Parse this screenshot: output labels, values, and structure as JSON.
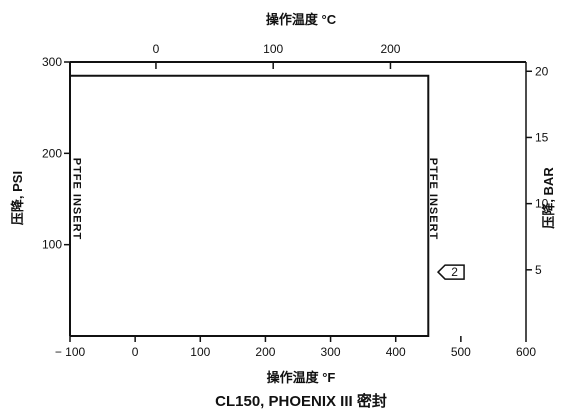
{
  "chart_data": {
    "type": "line",
    "title": "CL150, PHOENIX III 密封",
    "xlabel": "操作温度 °F",
    "x2label": "操作温度 °C",
    "ylabel": "压降, PSI",
    "y2label": "压降, BAR",
    "xlim": [
      -100,
      600
    ],
    "ylim": [
      0,
      300
    ],
    "x2lim": [
      -73.3,
      315.6
    ],
    "y2lim": [
      0,
      20.7
    ],
    "xticks": [
      "-100",
      "0",
      "100",
      "200",
      "300",
      "400",
      "500",
      "600"
    ],
    "yticks": [
      "100",
      "200",
      "300"
    ],
    "x2ticks": [
      "0",
      "100",
      "200"
    ],
    "y2ticks": [
      "5",
      "10",
      "15",
      "20"
    ],
    "grid": false,
    "series": [
      {
        "name": "PTFE INSERT",
        "x": [
          -100,
          450,
          450,
          -100
        ],
        "y": [
          285,
          285,
          0,
          0
        ]
      }
    ],
    "annotations": [
      {
        "text": "PTFE INSERT",
        "x": -95,
        "y": 150,
        "orientation": "vertical"
      },
      {
        "text": "PTFE INSERT",
        "x": 453,
        "y": 150,
        "orientation": "vertical"
      },
      {
        "text": "2",
        "x": 465,
        "y": 70,
        "shape": "flag"
      }
    ],
    "colors": {
      "line": "#111111"
    }
  }
}
